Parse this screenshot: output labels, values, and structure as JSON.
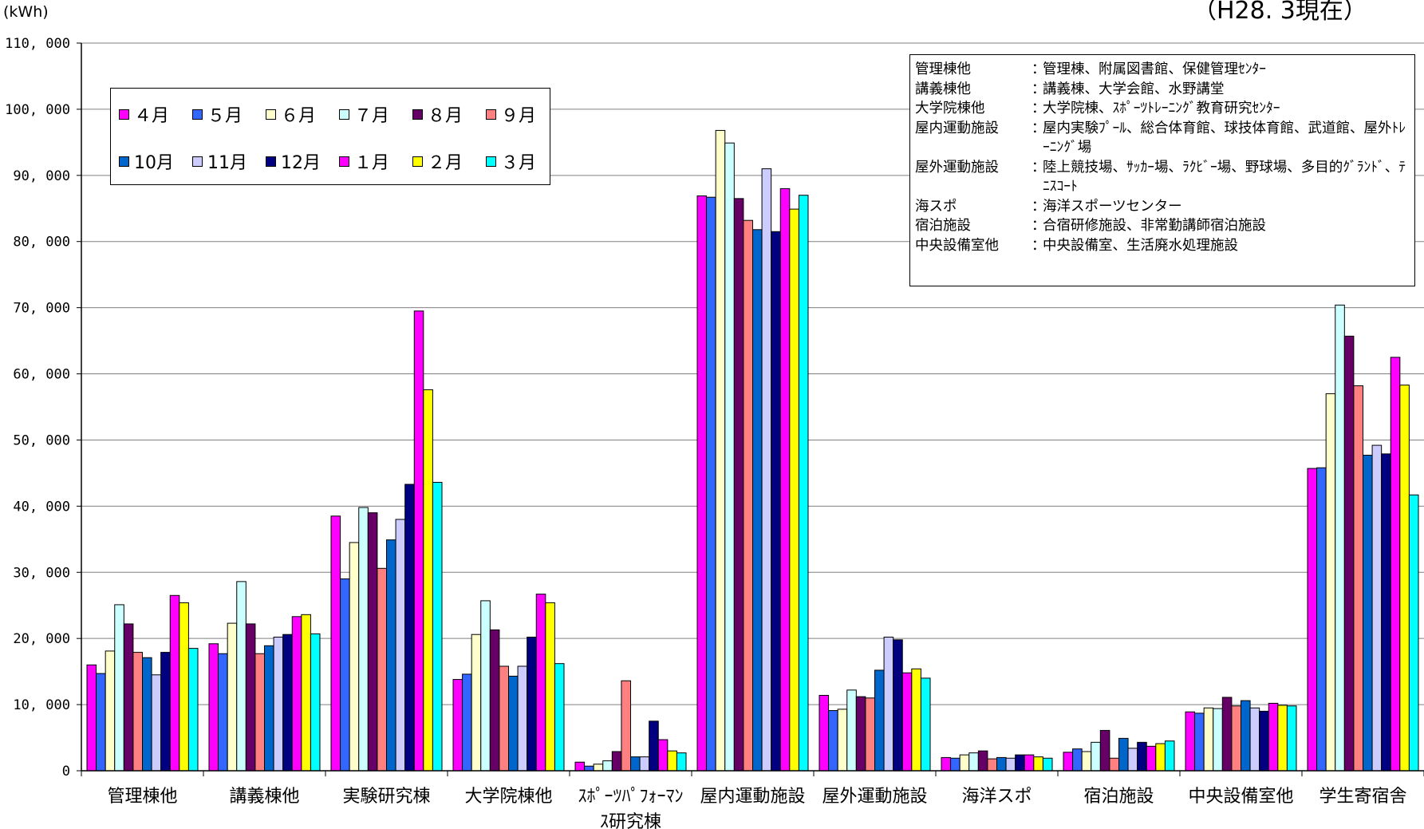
{
  "header": {
    "unit": "(kWh)",
    "date_note": "（H28. 3現在）"
  },
  "notes": [
    {
      "key": "管理棟他",
      "value": "管理棟、附属図書館、保健管理ｾﾝﾀｰ"
    },
    {
      "key": "講義棟他",
      "value": "講義棟、大学会館、水野講堂"
    },
    {
      "key": "大学院棟他",
      "value": "大学院棟、ｽﾎﾟｰﾂﾄﾚｰﾆﾝｸﾞ教育研究ｾﾝﾀｰ"
    },
    {
      "key": "屋内運動施設",
      "value": "屋内実験ﾌﾟｰﾙ、総合体育館、球技体育館、武道館、屋外ﾄﾚｰﾆﾝｸﾞ場"
    },
    {
      "key": "屋外運動施設",
      "value": "陸上競技場、ｻｯｶｰ場、ﾗｸﾋﾞｰ場、野球場、多目的ｸﾞﾗﾝﾄﾞ、ﾃﾆｽｺｰﾄ"
    },
    {
      "key": "海スポ",
      "value": "海洋スポーツセンター"
    },
    {
      "key": "宿泊施設",
      "value": "合宿研修施設、非常勤講師宿泊施設"
    },
    {
      "key": "中央設備室他",
      "value": "中央設備室、生活廃水処理施設"
    }
  ],
  "notes_sep": "：",
  "chart_data": {
    "type": "bar",
    "title": "",
    "xlabel": "",
    "ylabel": "(kWh)",
    "ylim": [
      0,
      110000
    ],
    "yticks": [
      0,
      10000,
      20000,
      30000,
      40000,
      50000,
      60000,
      70000,
      80000,
      90000,
      100000,
      110000
    ],
    "ytick_labels": [
      "0",
      "10, 000",
      "20, 000",
      "30, 000",
      "40, 000",
      "50, 000",
      "60, 000",
      "70, 000",
      "80, 000",
      "90, 000",
      "100, 000",
      "110, 000"
    ],
    "grid": true,
    "legend_position": "top-left",
    "categories": [
      "管理棟他",
      "講義棟他",
      "実験研究棟",
      "大学院棟他",
      "ｽﾎﾟｰﾂﾊﾟﾌｫｰﾏﾝｽ研究棟",
      "屋内運動施設",
      "屋外運動施設",
      "海洋スポ",
      "宿泊施設",
      "中央設備室他",
      "学生寄宿舎"
    ],
    "category_label_lines": [
      [
        "管理棟他"
      ],
      [
        "講義棟他"
      ],
      [
        "実験研究棟"
      ],
      [
        "大学院棟他"
      ],
      [
        "ｽﾎﾟｰﾂﾊﾟﾌｫｰﾏﾝ",
        "ｽ研究棟"
      ],
      [
        "屋内運動施設"
      ],
      [
        "屋外運動施設"
      ],
      [
        "海洋スポ"
      ],
      [
        "宿泊施設"
      ],
      [
        "中央設備室他"
      ],
      [
        "学生寄宿舎"
      ]
    ],
    "series": [
      {
        "name": "４月",
        "color": "#ff00ff",
        "values": [
          16000,
          19200,
          38500,
          13800,
          1300,
          86900,
          11400,
          2000,
          2800,
          8900,
          45700
        ]
      },
      {
        "name": "５月",
        "color": "#3366ff",
        "values": [
          14700,
          17700,
          29000,
          14600,
          700,
          86700,
          9100,
          1900,
          3300,
          8700,
          45800
        ]
      },
      {
        "name": "６月",
        "color": "#ffffcc",
        "values": [
          18100,
          22300,
          34500,
          20600,
          1000,
          96800,
          9300,
          2400,
          2900,
          9500,
          57000
        ]
      },
      {
        "name": "７月",
        "color": "#ccffff",
        "values": [
          25100,
          28600,
          39800,
          25700,
          1500,
          94900,
          12200,
          2700,
          4300,
          9400,
          70400
        ]
      },
      {
        "name": "８月",
        "color": "#660066",
        "values": [
          22200,
          22200,
          39000,
          21300,
          2900,
          86500,
          11200,
          3000,
          6100,
          11100,
          65700
        ]
      },
      {
        "name": "９月",
        "color": "#ff8080",
        "values": [
          17900,
          17700,
          30600,
          15800,
          13600,
          83200,
          11000,
          1800,
          1900,
          9800,
          58200
        ]
      },
      {
        "name": "10月",
        "color": "#0066cc",
        "values": [
          17100,
          18900,
          34900,
          14300,
          2100,
          81800,
          15200,
          2000,
          4900,
          10600,
          47700
        ]
      },
      {
        "name": "11月",
        "color": "#ccccff",
        "values": [
          14500,
          20200,
          38000,
          15800,
          2100,
          91000,
          20200,
          1900,
          3400,
          9500,
          49200
        ]
      },
      {
        "name": "12月",
        "color": "#000080",
        "values": [
          17900,
          20600,
          43300,
          20200,
          7500,
          81500,
          19800,
          2400,
          4300,
          9000,
          47900
        ]
      },
      {
        "name": "１月",
        "color": "#ff00ff",
        "values": [
          26500,
          23300,
          69500,
          26700,
          4700,
          88000,
          14800,
          2400,
          3700,
          10200,
          62500
        ]
      },
      {
        "name": "２月",
        "color": "#ffff00",
        "values": [
          25400,
          23600,
          57600,
          25400,
          3000,
          84900,
          15400,
          2100,
          4100,
          9900,
          58300
        ]
      },
      {
        "name": "３月",
        "color": "#00ffff",
        "values": [
          18500,
          20700,
          43600,
          16200,
          2700,
          87000,
          14000,
          1900,
          4500,
          9800,
          41700
        ]
      }
    ]
  }
}
